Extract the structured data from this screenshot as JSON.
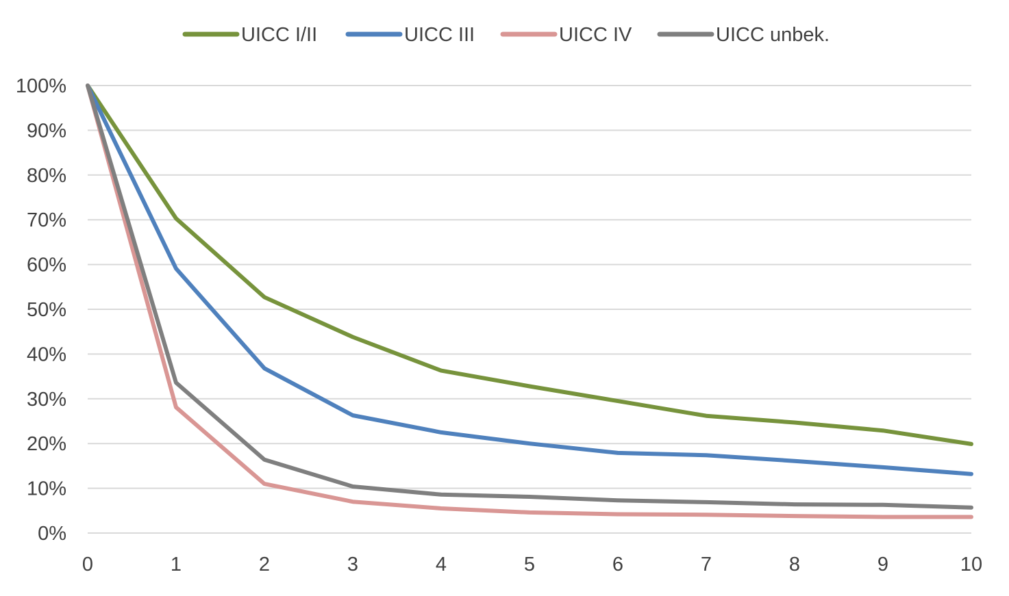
{
  "chart_data": {
    "type": "line",
    "title": "",
    "xlabel": "",
    "ylabel": "",
    "x": [
      0,
      1,
      2,
      3,
      4,
      5,
      6,
      7,
      8,
      9,
      10
    ],
    "x_tick_labels": [
      "0",
      "1",
      "2",
      "3",
      "4",
      "5",
      "6",
      "7",
      "8",
      "9",
      "10"
    ],
    "y_tick_labels": [
      "0%",
      "10%",
      "20%",
      "30%",
      "40%",
      "50%",
      "60%",
      "70%",
      "80%",
      "90%",
      "100%"
    ],
    "ylim": [
      0,
      100
    ],
    "xlim": [
      0,
      10
    ],
    "grid": true,
    "legend_position": "top",
    "series": [
      {
        "name": "UICC I/II",
        "color": "#77933c",
        "values": [
          100,
          70.3,
          52.7,
          43.8,
          36.3,
          32.8,
          29.5,
          26.2,
          24.7,
          22.9,
          19.9
        ]
      },
      {
        "name": "UICC III",
        "color": "#4f81bd",
        "values": [
          100,
          59.1,
          36.8,
          26.3,
          22.5,
          20.0,
          17.9,
          17.4,
          16.1,
          14.7,
          13.2
        ]
      },
      {
        "name": "UICC IV",
        "color": "#d99694",
        "values": [
          100,
          28.1,
          11.0,
          7.0,
          5.5,
          4.6,
          4.2,
          4.1,
          3.8,
          3.6,
          3.6
        ]
      },
      {
        "name": "UICC unbek.",
        "color": "#7f7f7f",
        "values": [
          100,
          33.6,
          16.4,
          10.4,
          8.6,
          8.1,
          7.3,
          6.9,
          6.4,
          6.3,
          5.7
        ]
      }
    ]
  }
}
